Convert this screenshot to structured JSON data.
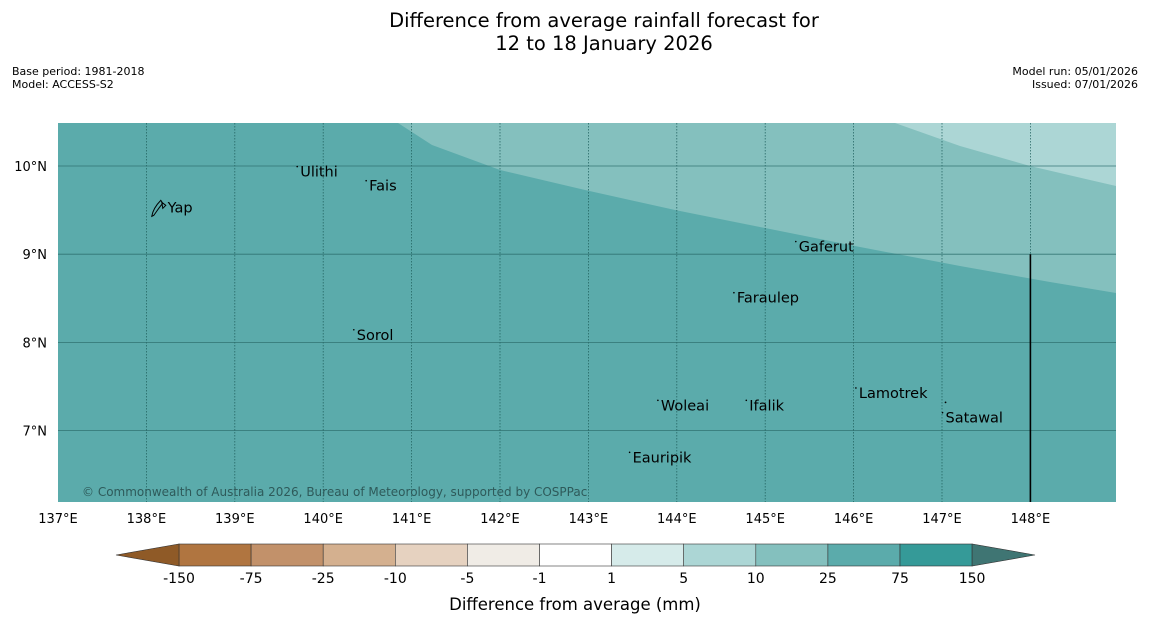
{
  "title": {
    "line1": "Difference from average rainfall forecast for",
    "line2": "12 to 18 January 2026"
  },
  "meta": {
    "base_period": "Base period: 1981-2018",
    "model": "Model: ACCESS-S2",
    "model_run": "Model run: 05/01/2026",
    "issued": "Issued: 07/01/2026"
  },
  "map": {
    "latitude_labels": [
      "10°N",
      "9°N",
      "8°N",
      "7°N"
    ],
    "longitude_labels": [
      "137°E",
      "138°E",
      "139°E",
      "140°E",
      "141°E",
      "142°E",
      "143°E",
      "144°E",
      "145°E",
      "146°E",
      "147°E",
      "148°E"
    ],
    "places": [
      {
        "name": "Yap",
        "lon": 138.24,
        "lat": 9.47
      },
      {
        "name": "Ulithi",
        "lon": 139.74,
        "lat": 9.88
      },
      {
        "name": "Fais",
        "lon": 140.52,
        "lat": 9.72
      },
      {
        "name": "Gaferut",
        "lon": 145.38,
        "lat": 9.03
      },
      {
        "name": "Faraulep",
        "lon": 144.68,
        "lat": 8.45
      },
      {
        "name": "Sorol",
        "lon": 140.38,
        "lat": 8.03
      },
      {
        "name": "Lamotrek",
        "lon": 146.06,
        "lat": 7.37
      },
      {
        "name": "Woleai",
        "lon": 143.82,
        "lat": 7.23
      },
      {
        "name": "Ifalik",
        "lon": 144.82,
        "lat": 7.23
      },
      {
        "name": "Satawal",
        "lon": 147.04,
        "lat": 7.09
      },
      {
        "name": "Eauripik",
        "lon": 143.5,
        "lat": 6.64
      }
    ],
    "copyright": "© Commonwealth of Australia 2026, Bureau of Meteorology, supported by COSPPac"
  },
  "colorbar": {
    "label": "Difference from average (mm)",
    "tick_labels": [
      "-150",
      "-75",
      "-25",
      "-10",
      "-5",
      "-1",
      "1",
      "5",
      "10",
      "25",
      "75",
      "150"
    ],
    "colors": [
      "#8f5a27",
      "#b07540",
      "#c2916a",
      "#d4b08f",
      "#e6d2c0",
      "#f0ece6",
      "#ffffff",
      "#d6ebea",
      "#acd6d5",
      "#84c0be",
      "#5babab",
      "#359a98",
      "#3f7573"
    ],
    "map_colors": {
      "band_5_10": "#acd6d5",
      "band_10_25": "#84c0be",
      "band_25_75": "#5babab"
    }
  }
}
